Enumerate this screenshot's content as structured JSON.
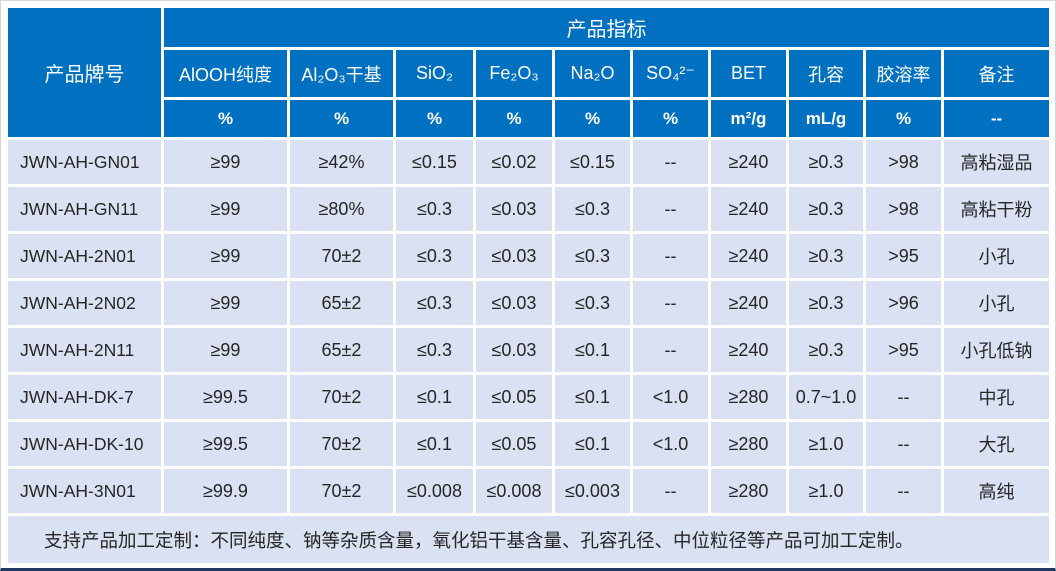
{
  "header": {
    "corner": "产品牌号",
    "group": "产品指标"
  },
  "columns": [
    {
      "label": "AlOOH纯度",
      "unit": "%"
    },
    {
      "label": "Al₂O₃干基",
      "unit": "%"
    },
    {
      "label": "SiO₂",
      "unit": "%"
    },
    {
      "label": "Fe₂O₃",
      "unit": "%"
    },
    {
      "label": "Na₂O",
      "unit": "%"
    },
    {
      "label": "SO₄²⁻",
      "unit": "%"
    },
    {
      "label": "BET",
      "unit": "m²/g"
    },
    {
      "label": "孔容",
      "unit": "mL/g"
    },
    {
      "label": "胶溶率",
      "unit": "%"
    },
    {
      "label": "备注",
      "unit": "--"
    }
  ],
  "rows": [
    {
      "model": "JWN-AH-GN01",
      "values": [
        "≥99",
        "≥42%",
        "≤0.15",
        "≤0.02",
        "≤0.15",
        "--",
        "≥240",
        "≥0.3",
        ">98",
        "高粘湿品"
      ]
    },
    {
      "model": "JWN-AH-GN11",
      "values": [
        "≥99",
        "≥80%",
        "≤0.3",
        "≤0.03",
        "≤0.3",
        "--",
        "≥240",
        "≥0.3",
        ">98",
        "高粘干粉"
      ]
    },
    {
      "model": "JWN-AH-2N01",
      "values": [
        "≥99",
        "70±2",
        "≤0.3",
        "≤0.03",
        "≤0.3",
        "--",
        "≥240",
        "≥0.3",
        ">95",
        "小孔"
      ]
    },
    {
      "model": "JWN-AH-2N02",
      "values": [
        "≥99",
        "65±2",
        "≤0.3",
        "≤0.03",
        "≤0.3",
        "--",
        "≥240",
        "≥0.3",
        ">96",
        "小孔"
      ]
    },
    {
      "model": "JWN-AH-2N11",
      "values": [
        "≥99",
        "65±2",
        "≤0.3",
        "≤0.03",
        "≤0.1",
        "--",
        "≥240",
        "≥0.3",
        ">95",
        "小孔低钠"
      ]
    },
    {
      "model": "JWN-AH-DK-7",
      "values": [
        "≥99.5",
        "70±2",
        "≤0.1",
        "≤0.05",
        "≤0.1",
        "<1.0",
        "≥280",
        "0.7~1.0",
        "--",
        "中孔"
      ]
    },
    {
      "model": "JWN-AH-DK-10",
      "values": [
        "≥99.5",
        "70±2",
        "≤0.1",
        "≤0.05",
        "≤0.1",
        "<1.0",
        "≥280",
        "≥1.0",
        "--",
        "大孔"
      ]
    },
    {
      "model": "JWN-AH-3N01",
      "values": [
        "≥99.9",
        "70±2",
        "≤0.008",
        "≤0.008",
        "≤0.003",
        "--",
        "≥280",
        "≥1.0",
        "--",
        "高纯"
      ]
    }
  ],
  "footer_note": "支持产品加工定制：不同纯度、钠等杂质含量，氧化铝干基含量、孔容孔径、中位粒径等产品可加工定制。",
  "colors": {
    "header_bg": "#0070C0",
    "header_text": "#FFFFFF",
    "row_bg": "#D9E1F2",
    "body_text": "#262626",
    "grid_line": "#FFFFFF",
    "outer_bottom_border": "#1F3864"
  }
}
